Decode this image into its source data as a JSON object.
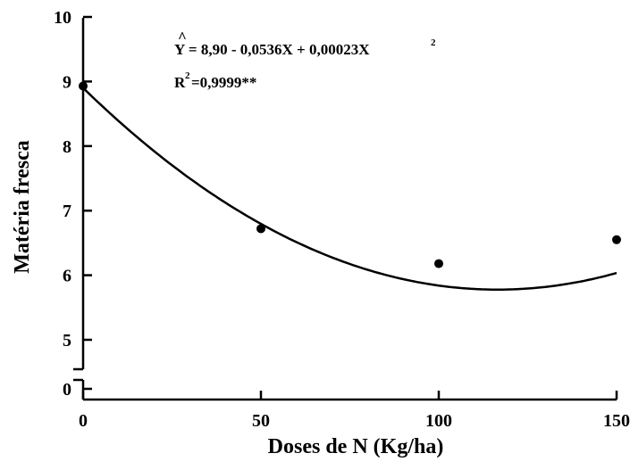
{
  "chart_data": {
    "type": "scatter",
    "title": "",
    "xlabel": "Doses de N (Kg/ha)",
    "ylabel": "Matéria fresca",
    "xlim": [
      0,
      150
    ],
    "ylim": [
      0,
      10
    ],
    "axis_break": [
      0,
      4.5
    ],
    "x_ticks": [
      "0",
      "50",
      "100",
      "150"
    ],
    "y_ticks": [
      "0",
      "5",
      "6",
      "7",
      "8",
      "9",
      "10"
    ],
    "series": [
      {
        "x": [
          0,
          50,
          100,
          150
        ],
        "y": [
          8.93,
          6.72,
          6.18,
          6.55
        ]
      }
    ],
    "fit": {
      "type": "quadratic",
      "coefficients": [
        8.9,
        -0.0536,
        0.00023
      ]
    },
    "annotations": {
      "equation_hat": "^",
      "equation_main": "Y = 8,90 - 0,0536X + 0,00023X",
      "equation_sup": "2",
      "r2_base": "R",
      "r2_sup": "2",
      "r2_value": "=0,9999**"
    },
    "grid": false,
    "legend": "none"
  }
}
